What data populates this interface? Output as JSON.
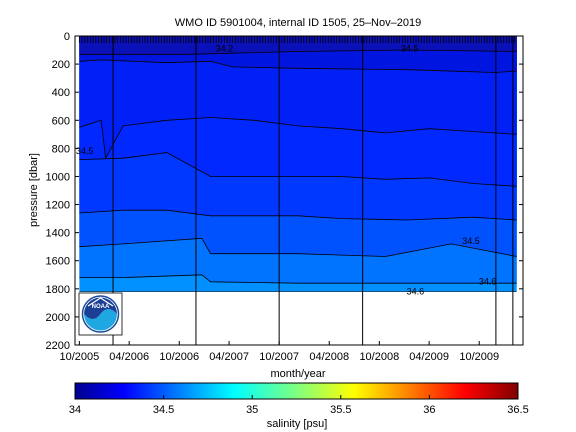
{
  "chart_data": {
    "type": "heatmap",
    "title": "WMO ID 5901004, internal ID 1505, 25–Nov–2019",
    "xlabel": "month/year",
    "ylabel": "pressure [dbar]",
    "x_ticks": [
      "10/2005",
      "04/2006",
      "10/2006",
      "04/2007",
      "10/2007",
      "04/2008",
      "10/2008",
      "04/2009",
      "10/2009"
    ],
    "y_ticks": [
      0,
      200,
      400,
      600,
      800,
      1000,
      1200,
      1400,
      1600,
      1800,
      2000,
      2200
    ],
    "ylim": [
      2200,
      0
    ],
    "xlim": [
      "2005-09-15",
      "2010-03-10"
    ],
    "data_start": "2005-10-01",
    "data_end": "2010-02-15",
    "max_pressure": 1820,
    "vertical_markers": [
      "2006-02-01",
      "2006-12-01",
      "2007-10-01",
      "2008-08-01",
      "2009-12-01",
      "2010-02-01"
    ],
    "colorbar": {
      "label": "salinity [psu]",
      "min": 34,
      "max": 36.5,
      "ticks": [
        "34",
        "34.5",
        "35",
        "35.5",
        "36",
        "36.5"
      ]
    },
    "salinity_layers": [
      {
        "salinity": 34.2,
        "color": "#0a11b8",
        "depths": [
          [
            0,
            130
          ],
          [
            0.25,
            130
          ],
          [
            0.5,
            110
          ],
          [
            0.75,
            100
          ],
          [
            1,
            110
          ]
        ]
      },
      {
        "salinity": 34.3,
        "color": "#0016e0",
        "depths": [
          [
            0,
            180
          ],
          [
            0.05,
            170
          ],
          [
            0.2,
            190
          ],
          [
            0.3,
            180
          ],
          [
            0.35,
            220
          ],
          [
            0.5,
            230
          ],
          [
            0.75,
            240
          ],
          [
            0.95,
            260
          ],
          [
            1,
            250
          ]
        ]
      },
      {
        "salinity": 34.38,
        "color": "#0020f5",
        "depths": [
          [
            0,
            650
          ],
          [
            0.05,
            600
          ],
          [
            0.06,
            870
          ],
          [
            0.1,
            640
          ],
          [
            0.2,
            600
          ],
          [
            0.3,
            580
          ],
          [
            0.4,
            600
          ],
          [
            0.5,
            640
          ],
          [
            0.6,
            660
          ],
          [
            0.7,
            690
          ],
          [
            0.8,
            660
          ],
          [
            0.9,
            680
          ],
          [
            1,
            700
          ]
        ]
      },
      {
        "salinity": 34.42,
        "color": "#0028ff",
        "depths": [
          [
            0,
            880
          ],
          [
            0.1,
            870
          ],
          [
            0.2,
            830
          ],
          [
            0.3,
            1000
          ],
          [
            0.4,
            1000
          ],
          [
            0.5,
            1000
          ],
          [
            0.6,
            1000
          ],
          [
            0.7,
            1020
          ],
          [
            0.8,
            1010
          ],
          [
            0.9,
            1050
          ],
          [
            1,
            1070
          ]
        ]
      },
      {
        "salinity": 34.48,
        "color": "#0038ff",
        "depths": [
          [
            0,
            1260
          ],
          [
            0.1,
            1240
          ],
          [
            0.2,
            1240
          ],
          [
            0.3,
            1280
          ],
          [
            0.5,
            1280
          ],
          [
            0.6,
            1300
          ],
          [
            0.75,
            1310
          ],
          [
            0.9,
            1290
          ],
          [
            1,
            1310
          ]
        ]
      },
      {
        "salinity": 34.55,
        "color": "#0052ff",
        "depths": [
          [
            0,
            1500
          ],
          [
            0.1,
            1480
          ],
          [
            0.28,
            1440
          ],
          [
            0.3,
            1550
          ],
          [
            0.5,
            1550
          ],
          [
            0.6,
            1560
          ],
          [
            0.7,
            1570
          ],
          [
            0.85,
            1480
          ],
          [
            1,
            1570
          ]
        ]
      },
      {
        "salinity": 34.62,
        "color": "#0073ff",
        "depths": [
          [
            0,
            1720
          ],
          [
            0.1,
            1720
          ],
          [
            0.28,
            1700
          ],
          [
            0.3,
            1750
          ],
          [
            0.5,
            1760
          ],
          [
            0.6,
            1760
          ],
          [
            0.7,
            1760
          ],
          [
            0.82,
            1760
          ],
          [
            0.9,
            1760
          ],
          [
            1,
            1760
          ]
        ]
      },
      {
        "salinity": 34.66,
        "color": "#0090ff",
        "depths": [
          [
            0,
            1820
          ],
          [
            1,
            1820
          ]
        ]
      }
    ],
    "contour_labels": [
      {
        "text": "34.5",
        "x": "2005-10-20",
        "y": 840
      },
      {
        "text": "34.2",
        "x": "2007-03-15",
        "y": 110
      },
      {
        "text": "34.5",
        "x": "2009-01-20",
        "y": 110
      },
      {
        "text": "34.6",
        "x": "2009-02-10",
        "y": 1840
      },
      {
        "text": "34.6",
        "x": "2009-11-01",
        "y": 1770
      },
      {
        "text": "34.5",
        "x": "2009-09-01",
        "y": 1480
      }
    ],
    "grid": false,
    "legend": "none"
  },
  "logo": {
    "text": "NOAA",
    "icon": "noaa-logo-icon"
  }
}
